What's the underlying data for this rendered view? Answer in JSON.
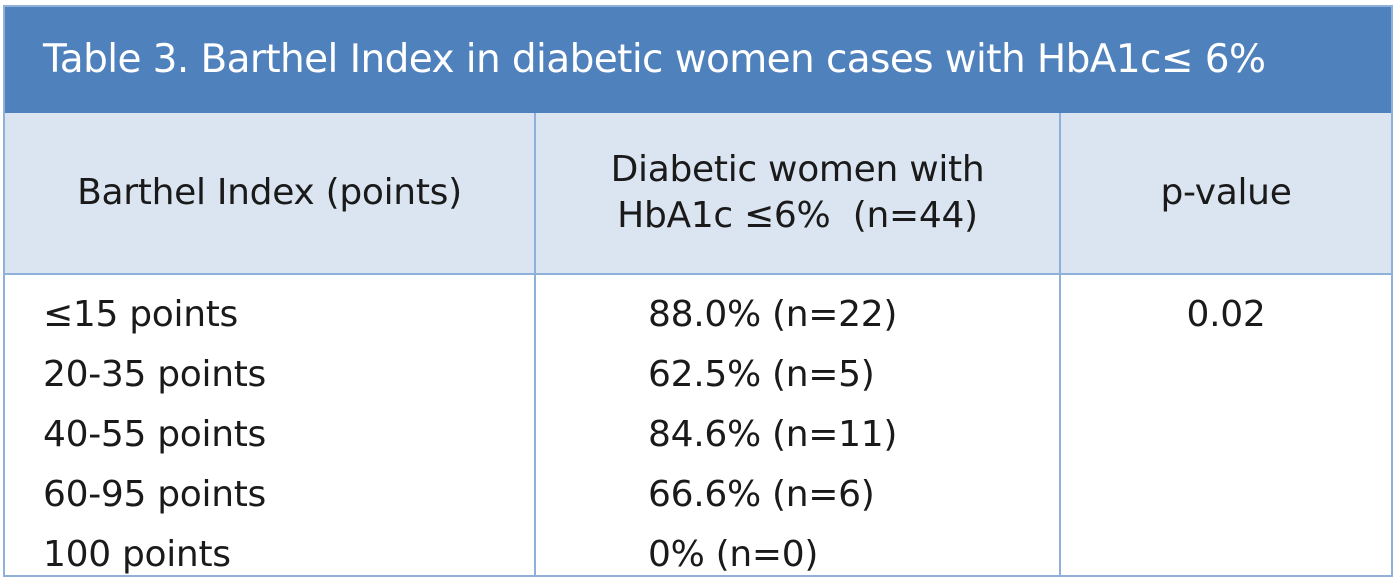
{
  "title": "Table 3. Barthel Index in diabetic women cases with HbA1c≤ 6%",
  "header": {
    "col1": "Barthel Index (points)",
    "col2_line1": "Diabetic women with",
    "col2_line2": "HbA1c ≤6%  (n=44)",
    "col3": "p-value"
  },
  "rows": [
    {
      "index": "≤15 points",
      "value": "88.0% (n=22)",
      "p": "0.02"
    },
    {
      "index": "20-35 points",
      "value": "62.5% (n=5)",
      "p": ""
    },
    {
      "index": "40-55 points",
      "value": "84.6% (n=11)",
      "p": ""
    },
    {
      "index": "60-95 points",
      "value": "66.6% (n=6)",
      "p": ""
    },
    {
      "index": "100 points",
      "value": "0% (n=0)",
      "p": ""
    }
  ],
  "colors": {
    "title_bg": "#4f81bd",
    "header_bg": "#dbe5f1",
    "border": "#8fb0d8"
  }
}
